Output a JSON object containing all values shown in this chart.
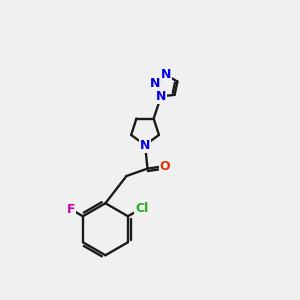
{
  "bg_color": "#f0f0f0",
  "bond_color": "#1a1a1a",
  "nitrogen_color": "#0000ee",
  "oxygen_color": "#dd3300",
  "fluorine_color": "#cc00aa",
  "chlorine_color": "#22aa22",
  "bond_lw": 1.7,
  "figsize": [
    3.0,
    3.0
  ],
  "dpi": 100,
  "xlim": [
    -1,
    11
  ],
  "ylim": [
    -1,
    11
  ]
}
